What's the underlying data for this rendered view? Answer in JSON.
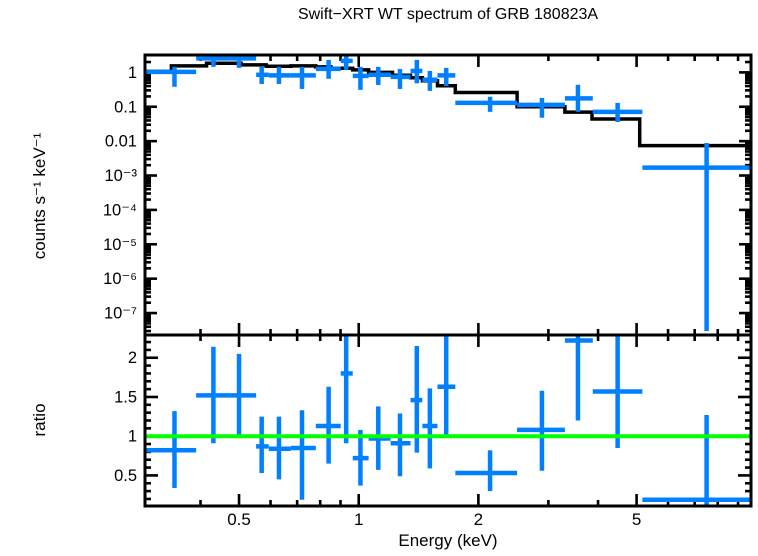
{
  "title": "Swift−XRT WT spectrum of GRB 180823A",
  "colors": {
    "data": "#0080ff",
    "model": "#000000",
    "reference_line": "#00ff00",
    "frame": "#000000",
    "background": "#ffffff"
  },
  "chart_data": [
    {
      "type": "scatter",
      "name": "spectrum",
      "title": "Swift−XRT WT spectrum of GRB 180823A",
      "xlabel": "Energy (keV)",
      "ylabel": "counts s⁻¹ keV⁻¹",
      "xscale": "log",
      "yscale": "log",
      "xlim": [
        0.29,
        9.7
      ],
      "ylim": [
        2.3e-08,
        3.2
      ],
      "x_major_ticks": [
        0.5,
        1,
        2,
        5
      ],
      "x_major_labels": [
        "0.5",
        "1",
        "2",
        "5"
      ],
      "x_minor_ticks": [
        0.4,
        0.6,
        0.7,
        0.8,
        0.9,
        3,
        4,
        6,
        7,
        8,
        9
      ],
      "y_major_ticks": [
        1,
        0.1,
        0.01,
        0.001,
        0.0001,
        1e-05,
        1e-06,
        1e-07
      ],
      "y_major_labels": [
        "1",
        "0.1",
        "0.01",
        "10⁻³",
        "10⁻⁴",
        "10⁻⁵",
        "10⁻⁶",
        "10⁻⁷"
      ],
      "legend": "none",
      "grid": false,
      "points_format": [
        "x_lo",
        "x",
        "x_hi",
        "y_lo",
        "y",
        "y_hi"
      ],
      "points": [
        [
          0.292,
          0.344,
          0.39,
          0.38,
          1.03,
          1.45
        ],
        [
          0.39,
          0.431,
          0.477,
          1.45,
          2.55,
          3.94
        ],
        [
          0.477,
          0.5,
          0.552,
          1.35,
          2.55,
          3.9
        ],
        [
          0.552,
          0.57,
          0.594,
          0.46,
          0.85,
          1.45
        ],
        [
          0.594,
          0.63,
          0.675,
          0.46,
          0.82,
          1.45
        ],
        [
          0.675,
          0.72,
          0.78,
          0.33,
          0.82,
          1.45
        ],
        [
          0.78,
          0.84,
          0.901,
          0.65,
          1.26,
          2.31
        ],
        [
          0.901,
          0.93,
          0.966,
          1.18,
          2.16,
          3.45
        ],
        [
          0.966,
          1.01,
          1.059,
          0.31,
          0.79,
          1.45
        ],
        [
          1.059,
          1.12,
          1.203,
          0.43,
          0.85,
          1.45
        ],
        [
          1.203,
          1.27,
          1.35,
          0.33,
          0.74,
          1.26
        ],
        [
          1.35,
          1.4,
          1.446,
          0.48,
          1.1,
          2.3
        ],
        [
          1.446,
          1.51,
          1.578,
          0.29,
          0.61,
          1.1
        ],
        [
          1.578,
          1.66,
          1.75,
          0.4,
          0.82,
          1.35
        ],
        [
          1.75,
          2.14,
          2.502,
          0.071,
          0.13,
          0.195
        ],
        [
          2.502,
          2.89,
          3.301,
          0.048,
          0.113,
          0.181
        ],
        [
          3.301,
          3.56,
          3.88,
          0.071,
          0.175,
          0.435
        ],
        [
          3.88,
          4.48,
          5.171,
          0.036,
          0.071,
          0.13
        ],
        [
          5.171,
          7.5,
          9.66,
          3e-08,
          0.0017,
          0.0088
        ]
      ],
      "model_steps": [
        [
          0.292,
          1.07
        ],
        [
          0.338,
          1.54
        ],
        [
          0.414,
          1.83
        ],
        [
          0.506,
          1.65
        ],
        [
          0.585,
          1.5
        ],
        [
          0.675,
          1.54
        ],
        [
          0.78,
          1.44
        ],
        [
          0.851,
          1.31
        ],
        [
          0.966,
          1.18
        ],
        [
          1.059,
          1.0
        ],
        [
          1.216,
          0.82
        ],
        [
          1.35,
          0.7
        ],
        [
          1.446,
          0.57
        ],
        [
          1.578,
          0.41
        ],
        [
          1.75,
          0.26
        ],
        [
          2.502,
          0.1
        ],
        [
          3.301,
          0.07
        ],
        [
          3.861,
          0.044
        ],
        [
          5.09,
          0.0074
        ],
        [
          9.66,
          0.0074
        ]
      ]
    },
    {
      "type": "scatter",
      "name": "ratio",
      "ylabel": "ratio",
      "xscale": "log",
      "yscale": "linear",
      "xlim": [
        0.29,
        9.7
      ],
      "ylim": [
        0.11,
        2.29
      ],
      "y_major_ticks": [
        0.5,
        1,
        1.5,
        2
      ],
      "y_major_labels": [
        "0.5",
        "1",
        "1.5",
        "2"
      ],
      "y_minor_step": 0.1,
      "reference_line": {
        "y": 1.0,
        "color": "#00ff00"
      },
      "grid": false,
      "points_format": [
        "x_lo",
        "x",
        "x_hi",
        "y_lo",
        "y",
        "y_hi"
      ],
      "points": [
        [
          0.292,
          0.344,
          0.39,
          0.34,
          0.82,
          1.32
        ],
        [
          0.39,
          0.431,
          0.477,
          0.91,
          1.52,
          2.14
        ],
        [
          0.477,
          0.5,
          0.552,
          1.0,
          1.52,
          2.05
        ],
        [
          0.552,
          0.57,
          0.594,
          0.53,
          0.87,
          1.25
        ],
        [
          0.594,
          0.63,
          0.675,
          0.45,
          0.84,
          1.25
        ],
        [
          0.675,
          0.72,
          0.78,
          0.19,
          0.85,
          1.33
        ],
        [
          0.78,
          0.84,
          0.901,
          0.65,
          1.13,
          1.63
        ],
        [
          0.901,
          0.93,
          0.966,
          0.91,
          1.8,
          2.35
        ],
        [
          0.966,
          1.01,
          1.059,
          0.37,
          0.72,
          1.08
        ],
        [
          1.059,
          1.12,
          1.203,
          0.57,
          0.97,
          1.38
        ],
        [
          1.203,
          1.27,
          1.35,
          0.49,
          0.91,
          1.29
        ],
        [
          1.35,
          1.4,
          1.446,
          0.79,
          1.46,
          2.15
        ],
        [
          1.446,
          1.51,
          1.578,
          0.59,
          1.13,
          1.61
        ],
        [
          1.578,
          1.66,
          1.75,
          1.01,
          1.63,
          2.28
        ],
        [
          1.75,
          2.14,
          2.502,
          0.3,
          0.53,
          0.82
        ],
        [
          2.502,
          2.89,
          3.301,
          0.56,
          1.08,
          1.58
        ],
        [
          3.301,
          3.56,
          3.88,
          1.2,
          2.22,
          2.4
        ],
        [
          3.88,
          4.48,
          5.171,
          0.85,
          1.57,
          2.28
        ],
        [
          5.171,
          7.5,
          9.66,
          0.05,
          0.19,
          1.27
        ]
      ]
    }
  ]
}
